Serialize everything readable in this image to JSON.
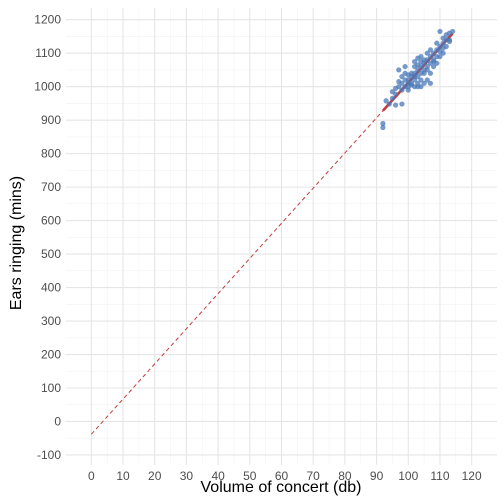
{
  "chart_data": {
    "type": "scatter",
    "xlabel": "Volume of concert (db)",
    "ylabel": "Ears ringing (mins)",
    "xlim": [
      -8,
      128
    ],
    "ylim": [
      -130,
      1235
    ],
    "x_ticks": [
      0,
      10,
      20,
      30,
      40,
      50,
      60,
      70,
      80,
      90,
      100,
      110,
      120
    ],
    "y_ticks": [
      -100,
      0,
      100,
      200,
      300,
      400,
      500,
      600,
      700,
      800,
      900,
      1000,
      1100,
      1200
    ],
    "grid": true,
    "colors": {
      "points": "#4a78b8",
      "fit": "#c43b3b",
      "extrapolation": "#c43b3b",
      "grid_major": "#e5e5e5",
      "grid_minor": "#f2f2f2"
    },
    "regression_line": {
      "intercept": -38,
      "slope": 10.5
    },
    "fit_segment_x": [
      92,
      114
    ],
    "extrapolation_x": [
      0,
      92
    ],
    "points": [
      [
        92,
        890
      ],
      [
        92,
        878
      ],
      [
        93,
        958
      ],
      [
        94,
        948
      ],
      [
        95,
        965
      ],
      [
        95,
        985
      ],
      [
        96,
        978
      ],
      [
        96,
        995
      ],
      [
        96,
        945
      ],
      [
        97,
        1000
      ],
      [
        97,
        1015
      ],
      [
        97,
        1050
      ],
      [
        98,
        990
      ],
      [
        98,
        1010
      ],
      [
        98,
        1030
      ],
      [
        98,
        948
      ],
      [
        99,
        1000
      ],
      [
        99,
        1020
      ],
      [
        99,
        1040
      ],
      [
        99,
        1060
      ],
      [
        100,
        990
      ],
      [
        100,
        1010
      ],
      [
        100,
        1020
      ],
      [
        100,
        1035
      ],
      [
        100,
        1000
      ],
      [
        101,
        1005
      ],
      [
        101,
        1030
      ],
      [
        101,
        1040
      ],
      [
        101,
        1010
      ],
      [
        102,
        1000
      ],
      [
        102,
        1020
      ],
      [
        102,
        1040
      ],
      [
        102,
        1060
      ],
      [
        102,
        1075
      ],
      [
        102,
        1030
      ],
      [
        103,
        1010
      ],
      [
        103,
        1030
      ],
      [
        103,
        1050
      ],
      [
        103,
        1065
      ],
      [
        103,
        1085
      ],
      [
        103,
        1000
      ],
      [
        104,
        1020
      ],
      [
        104,
        1040
      ],
      [
        104,
        1060
      ],
      [
        104,
        1075
      ],
      [
        104,
        1090
      ],
      [
        104,
        1000
      ],
      [
        105,
        1010
      ],
      [
        105,
        1050
      ],
      [
        105,
        1070
      ],
      [
        105,
        1080
      ],
      [
        105,
        1040
      ],
      [
        106,
        1020
      ],
      [
        106,
        1060
      ],
      [
        106,
        1080
      ],
      [
        106,
        1100
      ],
      [
        106,
        1050
      ],
      [
        107,
        1040
      ],
      [
        107,
        1070
      ],
      [
        107,
        1090
      ],
      [
        107,
        1110
      ],
      [
        107,
        1010
      ],
      [
        108,
        1060
      ],
      [
        108,
        1080
      ],
      [
        108,
        1100
      ],
      [
        108,
        1075
      ],
      [
        109,
        1090
      ],
      [
        109,
        1110
      ],
      [
        109,
        1130
      ],
      [
        109,
        1070
      ],
      [
        110,
        1090
      ],
      [
        110,
        1120
      ],
      [
        110,
        1165
      ],
      [
        110,
        1105
      ],
      [
        111,
        1100
      ],
      [
        111,
        1130
      ],
      [
        111,
        1145
      ],
      [
        111,
        1115
      ],
      [
        112,
        1120
      ],
      [
        112,
        1140
      ],
      [
        112,
        1155
      ],
      [
        113,
        1140
      ],
      [
        113,
        1160
      ],
      [
        113,
        1135
      ],
      [
        114,
        1165
      ]
    ]
  }
}
